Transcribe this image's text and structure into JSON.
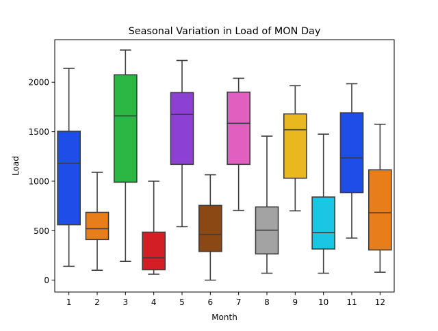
{
  "chart_data": {
    "type": "box",
    "title": "Seasonal Variation in Load of MON Day",
    "xlabel": "Month",
    "ylabel": "Load",
    "categories": [
      "1",
      "2",
      "3",
      "4",
      "5",
      "6",
      "7",
      "8",
      "9",
      "10",
      "11",
      "12"
    ],
    "ylim": [
      -120,
      2430
    ],
    "yticks": [
      0,
      500,
      1000,
      1500,
      2000
    ],
    "ytick_labels": [
      "0",
      "500",
      "1000",
      "1500",
      "2000"
    ],
    "grid": false,
    "boxes": [
      {
        "whislo": 140,
        "q1": 560,
        "med": 1180,
        "q3": 1505,
        "whishi": 2140,
        "color": "#1f4de8"
      },
      {
        "whislo": 100,
        "q1": 410,
        "med": 520,
        "q3": 685,
        "whishi": 1090,
        "color": "#e87e1a"
      },
      {
        "whislo": 190,
        "q1": 990,
        "med": 1660,
        "q3": 2075,
        "whishi": 2325,
        "color": "#2cb744"
      },
      {
        "whislo": 60,
        "q1": 105,
        "med": 225,
        "q3": 485,
        "whishi": 1000,
        "color": "#d41e26"
      },
      {
        "whislo": 540,
        "q1": 1170,
        "med": 1675,
        "q3": 1895,
        "whishi": 2220,
        "color": "#8d41d4"
      },
      {
        "whislo": 0,
        "q1": 290,
        "med": 460,
        "q3": 755,
        "whishi": 1065,
        "color": "#8b4815"
      },
      {
        "whislo": 705,
        "q1": 1170,
        "med": 1585,
        "q3": 1900,
        "whishi": 2040,
        "color": "#e160bf"
      },
      {
        "whislo": 70,
        "q1": 265,
        "med": 505,
        "q3": 740,
        "whishi": 1455,
        "color": "#a3a3a3"
      },
      {
        "whislo": 700,
        "q1": 1030,
        "med": 1520,
        "q3": 1680,
        "whishi": 1965,
        "color": "#e8b81e"
      },
      {
        "whislo": 70,
        "q1": 315,
        "med": 480,
        "q3": 840,
        "whishi": 1475,
        "color": "#1bc5e4"
      },
      {
        "whislo": 425,
        "q1": 885,
        "med": 1235,
        "q3": 1690,
        "whishi": 1985,
        "color": "#1f4de8"
      },
      {
        "whislo": 80,
        "q1": 305,
        "med": 680,
        "q3": 1115,
        "whishi": 1575,
        "color": "#e87e1a"
      }
    ]
  }
}
